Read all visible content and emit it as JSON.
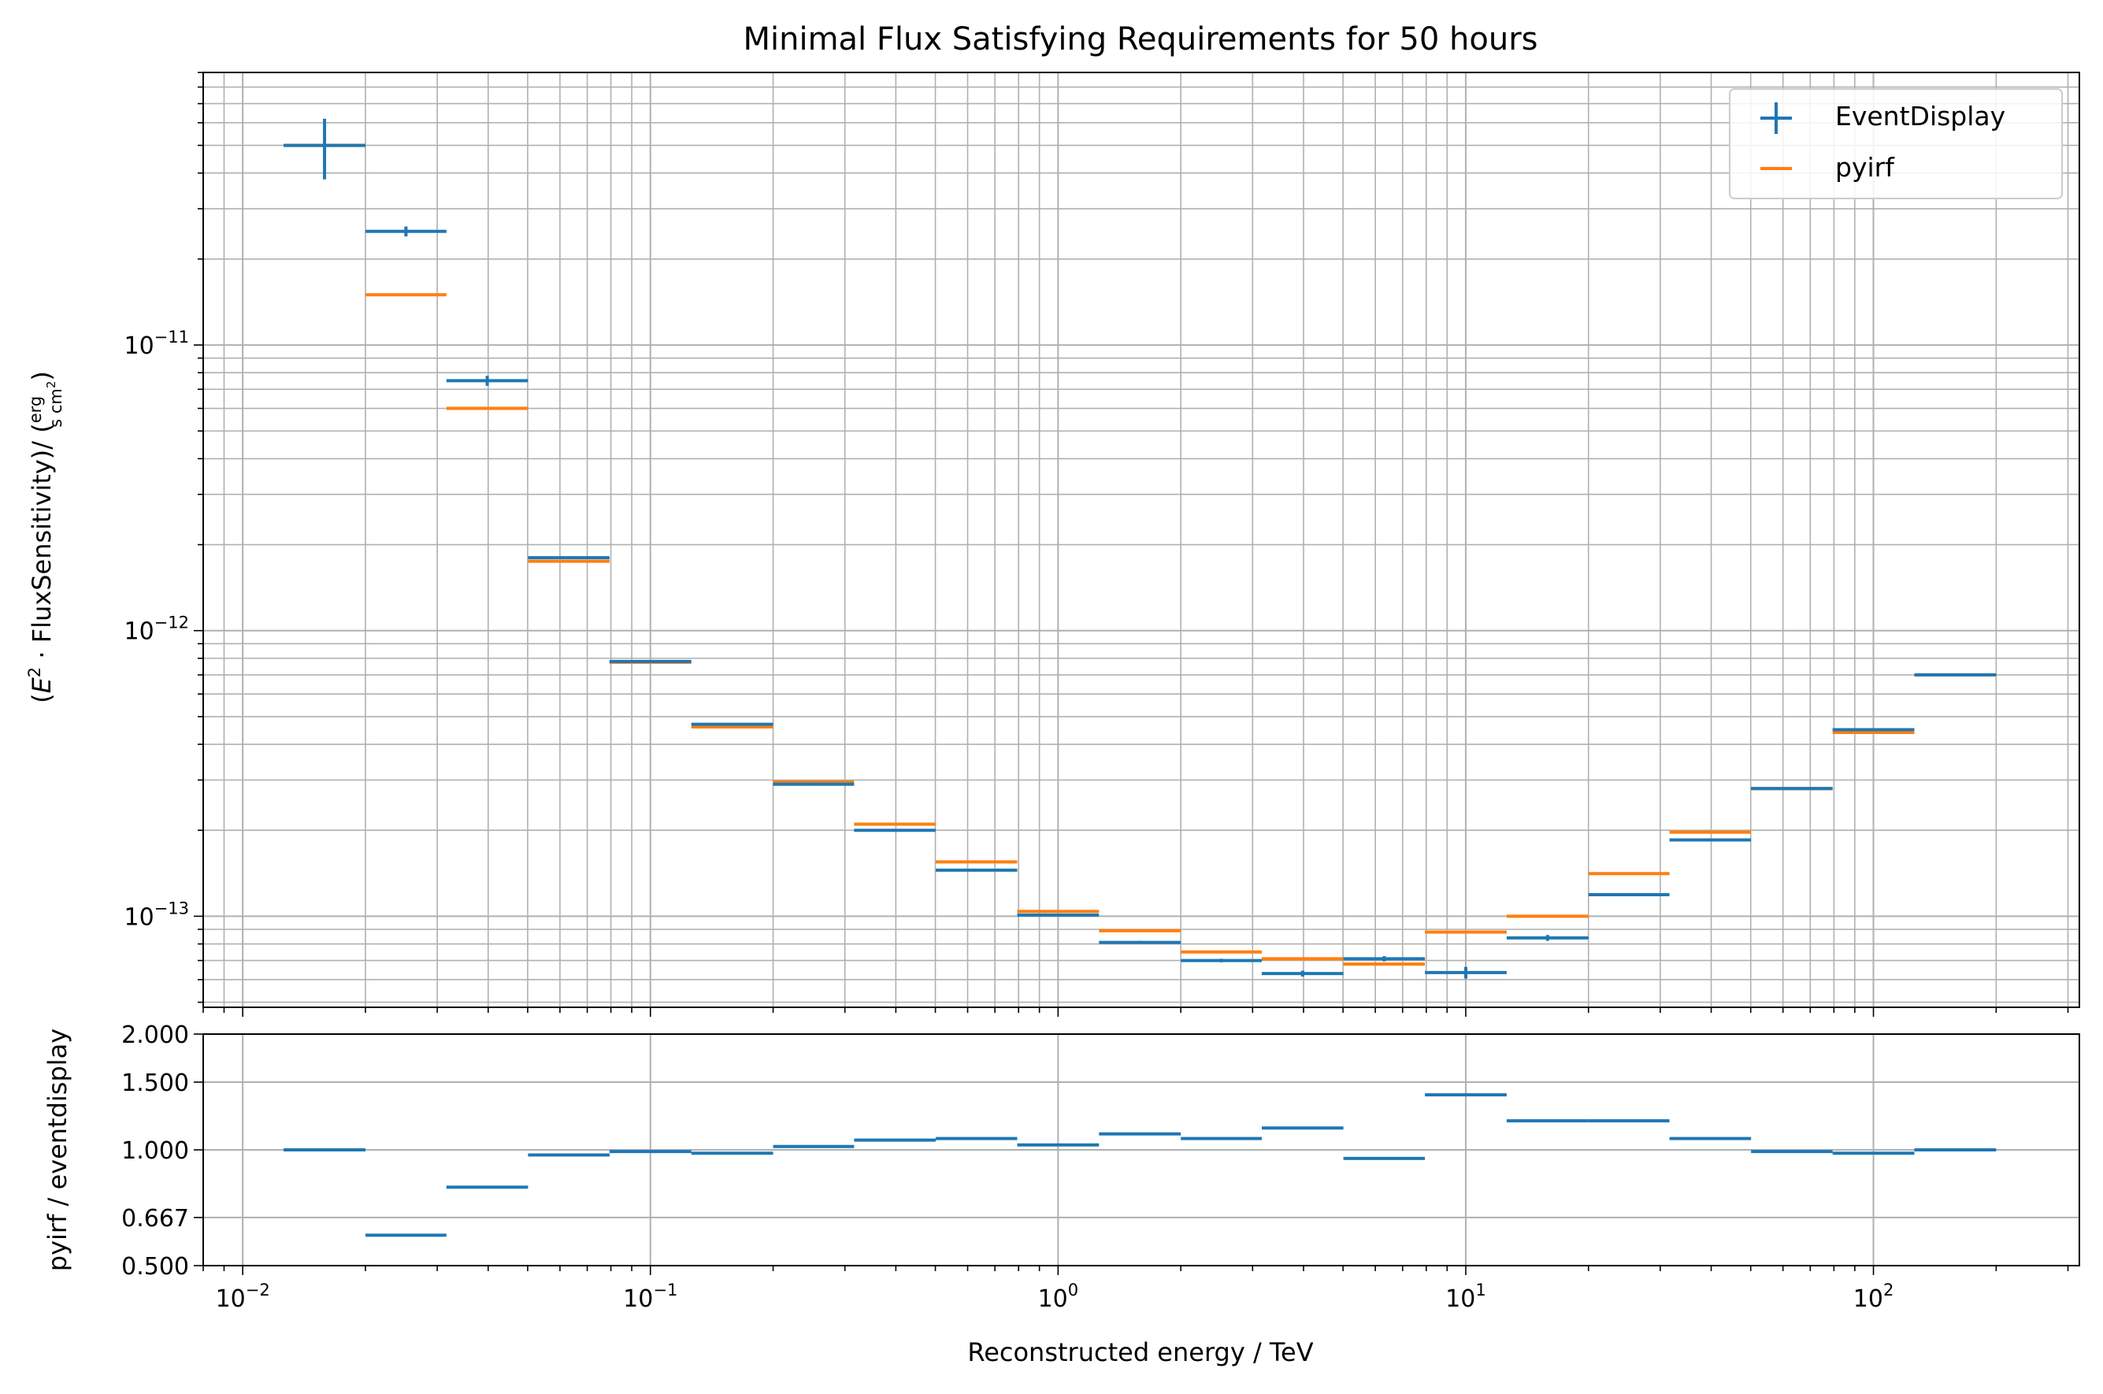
{
  "chart_data": [
    {
      "type": "scatter",
      "title": "Minimal Flux Satisfying Requirements for 50 hours",
      "xlabel": "",
      "ylabel_parts": [
        "(",
        "E",
        "2",
        " · FluxSensitivity)/ (",
        "erg",
        "s cm",
        "2",
        ")"
      ],
      "x_scale": "log",
      "y_scale": "log",
      "xlim": [
        0.008,
        320
      ],
      "ylim": [
        4.8e-14,
        9e-11
      ],
      "y_major_ticks": [
        1e-13,
        1e-12,
        1e-11
      ],
      "y_tick_labels": [
        {
          "base": "10",
          "exp": "−13"
        },
        {
          "base": "10",
          "exp": "−12"
        },
        {
          "base": "10",
          "exp": "−11"
        }
      ],
      "grid": true,
      "legend_position": "top-right",
      "bin_edges": [
        0.0126,
        0.02,
        0.0316,
        0.0501,
        0.0794,
        0.126,
        0.2,
        0.316,
        0.501,
        0.794,
        1.26,
        2.0,
        3.16,
        5.01,
        7.94,
        12.6,
        20.0,
        31.6,
        50.1,
        79.4,
        126,
        200
      ],
      "series": [
        {
          "name": "EventDisplay",
          "color": "#1f77b4",
          "marker": "plus",
          "y": [
            5e-11,
            2.5e-11,
            7.5e-12,
            1.8e-12,
            7.8e-13,
            4.7e-13,
            2.9e-13,
            2e-13,
            1.45e-13,
            1.01e-13,
            8.1e-14,
            7e-14,
            6.3e-14,
            7.1e-14,
            6.35e-14,
            8.4e-14,
            1.19e-13,
            1.85e-13,
            2.8e-13,
            4.5e-13,
            7e-13
          ],
          "y_err": [
            1.2e-11,
            1e-12,
            3e-13,
            2e-14,
            6e-15,
            3e-15,
            2e-15,
            1.5e-15,
            1.2e-15,
            1e-15,
            1e-15,
            1e-15,
            1.5e-15,
            1.5e-15,
            3e-15,
            2e-15,
            1e-15,
            1.5e-15,
            2e-15,
            3e-15,
            4e-15
          ]
        },
        {
          "name": "pyirf",
          "color": "#ff7f0e",
          "marker": "hline",
          "y": [
            5e-11,
            1.5e-11,
            6e-12,
            1.75e-12,
            7.75e-13,
            4.6e-13,
            2.95e-13,
            2.1e-13,
            1.55e-13,
            1.04e-13,
            8.9e-14,
            7.5e-14,
            7.1e-14,
            6.8e-14,
            8.8e-14,
            1e-13,
            1.41e-13,
            1.97e-13,
            2.8e-13,
            4.4e-13,
            7e-13
          ]
        }
      ]
    },
    {
      "type": "scatter",
      "title": "",
      "xlabel": "Reconstructed energy / TeV",
      "ylabel": "pyirf / eventdisplay",
      "x_scale": "log",
      "y_scale": "log",
      "xlim": [
        0.008,
        320
      ],
      "ylim": [
        0.5,
        2.0
      ],
      "y_ticks": [
        0.5,
        0.667,
        1.0,
        1.5,
        2.0
      ],
      "y_tick_labels": [
        "0.500",
        "0.667",
        "1.000",
        "1.500",
        "2.000"
      ],
      "x_ticks": [
        0.01,
        0.1,
        1,
        10,
        100
      ],
      "x_tick_labels": [
        {
          "base": "10",
          "exp": "−2"
        },
        {
          "base": "10",
          "exp": "−1"
        },
        {
          "base": "10",
          "exp": "0"
        },
        {
          "base": "10",
          "exp": "1"
        },
        {
          "base": "10",
          "exp": "2"
        }
      ],
      "grid": true,
      "series": [
        {
          "name": "",
          "color": "#1f77b4",
          "marker": "hline",
          "bin_edges": [
            0.0126,
            0.02,
            0.0316,
            0.0501,
            0.0794,
            0.126,
            0.2,
            0.316,
            0.501,
            0.794,
            1.26,
            2.0,
            3.16,
            5.01,
            7.94,
            12.6,
            20.0,
            31.6,
            50.1,
            79.4,
            126,
            200
          ],
          "y": [
            1.0,
            0.6,
            0.8,
            0.97,
            0.99,
            0.98,
            1.02,
            1.06,
            1.07,
            1.03,
            1.1,
            1.07,
            1.14,
            0.95,
            1.39,
            1.19,
            1.19,
            1.07,
            0.99,
            0.98,
            1.0
          ]
        }
      ]
    }
  ]
}
